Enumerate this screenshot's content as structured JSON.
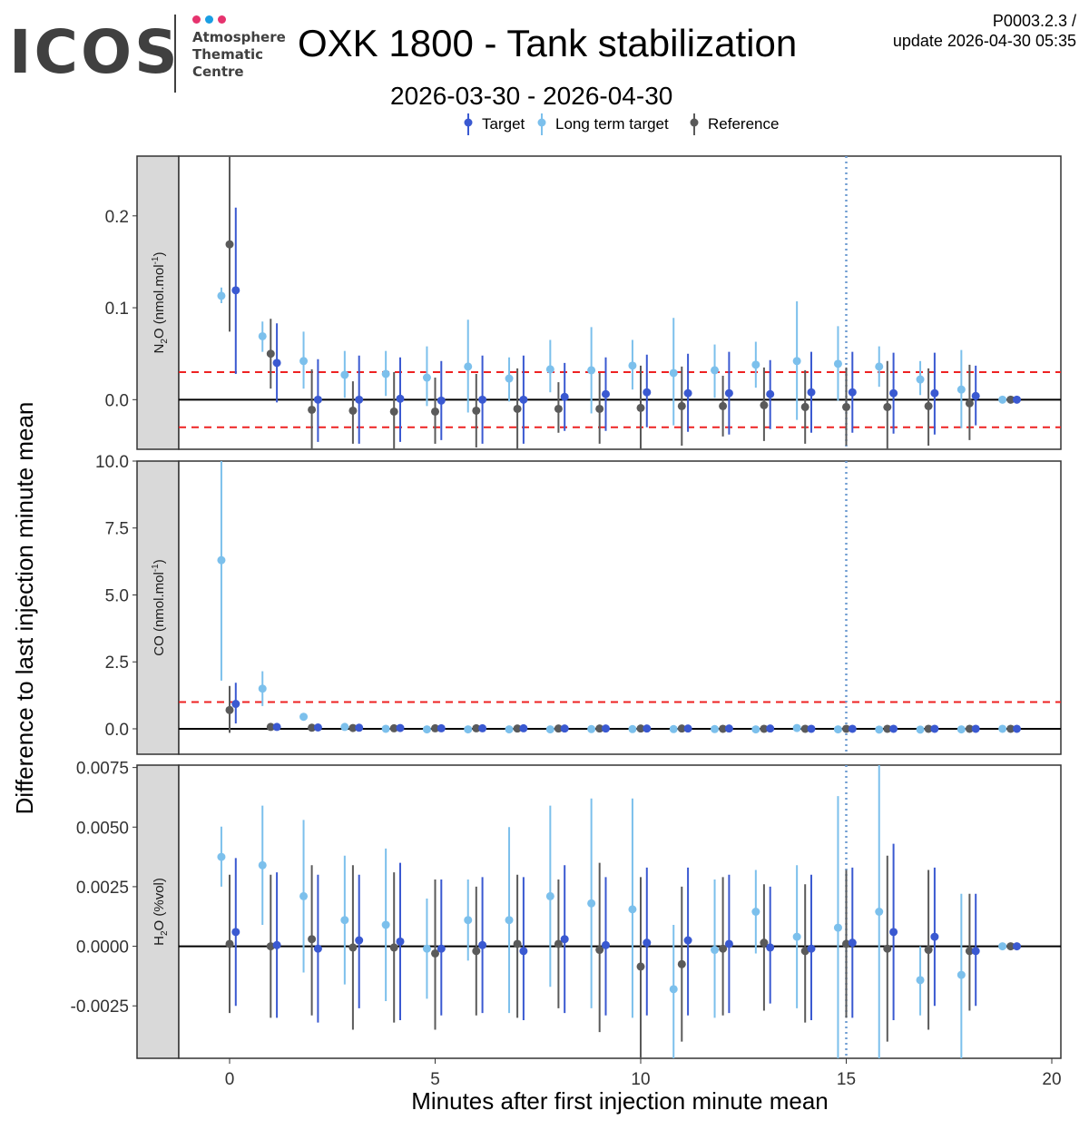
{
  "header": {
    "logo_text": "ICOS",
    "logo_subtitle_lines": [
      "Atmosphere",
      "Thematic",
      "Centre"
    ],
    "logo_dot_colors": [
      "#e6336e",
      "#1a9ee3",
      "#e6336e"
    ],
    "title": "OXK 1800 - Tank stabilization",
    "version_line1": "P0003.2.3 /",
    "version_line2": "update  2026-04-30 05:35",
    "subtitle": "2026-03-30 - 2026-04-30"
  },
  "chart_data": {
    "type": "scatter",
    "subtype": "faceted point-range",
    "xlabel": "Minutes after first injection minute mean",
    "ylabel": "Difference to last injection minute mean",
    "xlim": [
      -1.1,
      20.2
    ],
    "xticks": [
      0,
      5,
      10,
      15,
      20
    ],
    "xtick_labels": [
      "0",
      "5",
      "10",
      "15",
      "20"
    ],
    "vertical_reference_line": {
      "x": 15,
      "color": "#6d9bd1",
      "style": "dotted"
    },
    "legend": {
      "placement": "top-center",
      "entries": [
        {
          "name": "Target",
          "color": "#3a59d1"
        },
        {
          "name": "Long term target",
          "color": "#7cc0ec"
        },
        {
          "name": "Reference",
          "color": "#5a5a5a"
        }
      ]
    },
    "series_colors": {
      "Target": "#3a59d1",
      "Long term target": "#7cc0ec",
      "Reference": "#5a5a5a"
    },
    "series_x_offsets": {
      "Long term target": -0.2,
      "Reference": 0.0,
      "Target": 0.15
    },
    "minutes": [
      0,
      1,
      2,
      3,
      4,
      5,
      6,
      7,
      8,
      9,
      10,
      11,
      12,
      13,
      14,
      15,
      16,
      17,
      18,
      19
    ],
    "panels": [
      {
        "strip_label": "N2O (nmol.mol-1)",
        "strip_main": "N",
        "strip_sub": "2",
        "strip_rest": "O (nmol.mol",
        "strip_sup": "-1",
        "strip_end": ")",
        "ylim": [
          -0.054,
          0.265
        ],
        "yticks": [
          0.0,
          0.1,
          0.2
        ],
        "ytick_labels": [
          "0.0",
          "0.1",
          "0.2"
        ],
        "threshold_lines": [
          0.03,
          -0.03
        ],
        "series": [
          {
            "name": "Long term target",
            "values": [
              0.113,
              0.069,
              0.042,
              0.027,
              0.028,
              0.024,
              0.036,
              0.023,
              0.033,
              0.032,
              0.037,
              0.029,
              0.032,
              0.038,
              0.042,
              0.039,
              0.036,
              0.022,
              0.011,
              0.0
            ],
            "lower": [
              0.105,
              0.052,
              0.012,
              0.002,
              0.004,
              -0.007,
              -0.014,
              -0.002,
              0.008,
              -0.015,
              0.011,
              -0.028,
              0.002,
              0.013,
              -0.022,
              -0.001,
              0.014,
              0.005,
              -0.031,
              0.0
            ],
            "upper": [
              0.122,
              0.085,
              0.074,
              0.053,
              0.053,
              0.058,
              0.087,
              0.046,
              0.065,
              0.079,
              0.065,
              0.089,
              0.06,
              0.063,
              0.107,
              0.08,
              0.058,
              0.042,
              0.054,
              0.0
            ]
          },
          {
            "name": "Reference",
            "values": [
              0.169,
              0.05,
              -0.011,
              -0.012,
              -0.013,
              -0.013,
              -0.012,
              -0.01,
              -0.01,
              -0.01,
              -0.009,
              -0.007,
              -0.007,
              -0.006,
              -0.008,
              -0.008,
              -0.008,
              -0.007,
              -0.004,
              0.0
            ],
            "lower": [
              0.074,
              0.012,
              -0.055,
              -0.048,
              -0.055,
              -0.048,
              -0.052,
              -0.055,
              -0.036,
              -0.048,
              -0.055,
              -0.05,
              -0.04,
              -0.045,
              -0.048,
              -0.05,
              -0.055,
              -0.05,
              -0.044,
              0.0
            ],
            "upper": [
              0.265,
              0.088,
              0.033,
              0.02,
              0.03,
              0.024,
              0.028,
              0.034,
              0.019,
              0.029,
              0.037,
              0.036,
              0.026,
              0.035,
              0.032,
              0.035,
              0.042,
              0.034,
              0.038,
              0.0
            ]
          },
          {
            "name": "Target",
            "values": [
              0.119,
              0.04,
              0.0,
              0.0,
              0.001,
              -0.001,
              0.0,
              0.0,
              0.003,
              0.006,
              0.008,
              0.007,
              0.007,
              0.006,
              0.008,
              0.008,
              0.007,
              0.007,
              0.004,
              0.0
            ],
            "lower": [
              0.028,
              -0.003,
              -0.046,
              -0.048,
              -0.046,
              -0.044,
              -0.048,
              -0.048,
              -0.034,
              -0.034,
              -0.03,
              -0.035,
              -0.038,
              -0.032,
              -0.036,
              -0.036,
              -0.037,
              -0.038,
              -0.028,
              0.0
            ],
            "upper": [
              0.209,
              0.083,
              0.044,
              0.048,
              0.046,
              0.042,
              0.048,
              0.048,
              0.04,
              0.046,
              0.049,
              0.05,
              0.052,
              0.043,
              0.052,
              0.052,
              0.051,
              0.051,
              0.037,
              0.0
            ]
          }
        ]
      },
      {
        "strip_label": "CO (nmol.mol-1)",
        "strip_main": "CO (nmol.mol",
        "strip_sub": "",
        "strip_rest": "",
        "strip_sup": "-1",
        "strip_end": ")",
        "ylim": [
          -0.95,
          10.0
        ],
        "yticks": [
          0.0,
          2.5,
          5.0,
          7.5,
          10.0
        ],
        "ytick_labels": [
          "0.0",
          "2.5",
          "5.0",
          "7.5",
          "10.0"
        ],
        "threshold_lines": [
          1.0
        ],
        "series": [
          {
            "name": "Long term target",
            "values": [
              6.3,
              1.5,
              0.45,
              0.07,
              0.0,
              -0.02,
              -0.02,
              -0.02,
              -0.02,
              -0.01,
              -0.01,
              -0.01,
              -0.01,
              -0.02,
              0.03,
              -0.02,
              -0.03,
              -0.03,
              -0.02,
              0.0
            ],
            "lower": [
              1.8,
              0.85,
              0.35,
              -0.03,
              -0.08,
              -0.08,
              -0.08,
              -0.08,
              -0.08,
              -0.08,
              -0.08,
              -0.08,
              -0.08,
              -0.08,
              -0.04,
              -0.08,
              -0.08,
              -0.08,
              -0.08,
              0.0
            ],
            "upper": [
              10.0,
              2.15,
              0.55,
              0.15,
              0.08,
              0.06,
              0.05,
              0.05,
              0.05,
              0.05,
              0.05,
              0.05,
              0.05,
              0.05,
              0.1,
              0.05,
              0.05,
              0.05,
              0.05,
              0.0
            ]
          },
          {
            "name": "Reference",
            "values": [
              0.7,
              0.07,
              0.04,
              0.03,
              0.02,
              0.02,
              0.02,
              0.01,
              0.01,
              0.01,
              0.01,
              0.01,
              0.0,
              0.0,
              0.0,
              0.0,
              0.0,
              0.0,
              0.0,
              0.0
            ],
            "lower": [
              -0.15,
              0.0,
              -0.02,
              -0.03,
              -0.04,
              -0.04,
              -0.04,
              -0.04,
              -0.04,
              -0.04,
              -0.04,
              -0.04,
              -0.04,
              -0.04,
              -0.04,
              -0.04,
              -0.04,
              -0.04,
              -0.04,
              0.0
            ],
            "upper": [
              1.6,
              0.14,
              0.1,
              0.09,
              0.08,
              0.08,
              0.08,
              0.06,
              0.06,
              0.06,
              0.06,
              0.06,
              0.04,
              0.04,
              0.04,
              0.04,
              0.04,
              0.04,
              0.04,
              0.0
            ]
          },
          {
            "name": "Target",
            "values": [
              0.93,
              0.07,
              0.05,
              0.04,
              0.03,
              0.02,
              0.02,
              0.02,
              0.01,
              0.01,
              0.01,
              0.01,
              0.01,
              0.01,
              0.0,
              0.0,
              0.0,
              0.0,
              0.0,
              0.0
            ],
            "lower": [
              0.2,
              0.0,
              -0.02,
              -0.03,
              -0.03,
              -0.04,
              -0.04,
              -0.04,
              -0.04,
              -0.04,
              -0.04,
              -0.04,
              -0.04,
              -0.04,
              -0.04,
              -0.04,
              -0.04,
              -0.04,
              -0.04,
              0.0
            ],
            "upper": [
              1.72,
              0.14,
              0.12,
              0.11,
              0.09,
              0.08,
              0.08,
              0.08,
              0.06,
              0.06,
              0.06,
              0.06,
              0.06,
              0.06,
              0.04,
              0.04,
              0.04,
              0.04,
              0.04,
              0.0
            ]
          }
        ]
      },
      {
        "strip_label": "H2O (%vol)",
        "strip_main": "H",
        "strip_sub": "2",
        "strip_rest": "O (%vol)",
        "strip_sup": "",
        "strip_end": "",
        "ylim": [
          -0.0047,
          0.0076
        ],
        "yticks": [
          -0.0025,
          0.0,
          0.0025,
          0.005,
          0.0075
        ],
        "ytick_labels": [
          "-0.0025",
          "0.0000",
          "0.0025",
          "0.0050",
          "0.0075"
        ],
        "threshold_lines": [],
        "series": [
          {
            "name": "Long term target",
            "values": [
              0.00375,
              0.0034,
              0.0021,
              0.0011,
              0.0009,
              -0.0001,
              0.0011,
              0.0011,
              0.0021,
              0.0018,
              0.00155,
              -0.0018,
              -0.00015,
              0.00145,
              0.0004,
              0.00078,
              0.00145,
              -0.00142,
              -0.0012,
              0.0
            ],
            "lower": [
              0.0025,
              0.0009,
              -0.0011,
              -0.0016,
              -0.0023,
              -0.0022,
              -0.0006,
              -0.0028,
              -0.0017,
              -0.0026,
              -0.003,
              -0.0047,
              -0.003,
              -0.0003,
              -0.0026,
              -0.0047,
              -0.0047,
              -0.0029,
              -0.0047,
              0.0
            ],
            "upper": [
              0.00502,
              0.0059,
              0.0053,
              0.0038,
              0.0041,
              0.002,
              0.0028,
              0.005,
              0.0059,
              0.0062,
              0.0062,
              0.0009,
              0.0028,
              0.0032,
              0.0034,
              0.0063,
              0.0076,
              0.0,
              0.0022,
              0.0
            ]
          },
          {
            "name": "Reference",
            "values": [
              0.0001,
              0.0,
              0.0003,
              -5e-05,
              -5e-05,
              -0.0003,
              -0.0002,
              0.0001,
              0.0001,
              -0.00015,
              -0.00085,
              -0.00075,
              -0.0001,
              0.00015,
              -0.0002,
              0.0001,
              -0.0001,
              -0.00015,
              -0.0002,
              0.0
            ],
            "lower": [
              -0.0028,
              -0.003,
              -0.0029,
              -0.0035,
              -0.0032,
              -0.0035,
              -0.0029,
              -0.003,
              -0.0026,
              -0.0036,
              -0.0047,
              -0.004,
              -0.0029,
              -0.0027,
              -0.0032,
              -0.003,
              -0.004,
              -0.0035,
              -0.0027,
              0.0
            ],
            "upper": [
              0.003,
              0.003,
              0.0034,
              0.0034,
              0.0031,
              0.0028,
              0.0025,
              0.003,
              0.0028,
              0.0035,
              0.0029,
              0.0025,
              0.0029,
              0.0026,
              0.0026,
              0.0032,
              0.0038,
              0.0032,
              0.0022,
              0.0
            ]
          },
          {
            "name": "Target",
            "values": [
              0.0006,
              5e-05,
              -0.0001,
              0.00025,
              0.0002,
              -0.0001,
              5e-05,
              -0.0002,
              0.0003,
              5e-05,
              0.00015,
              0.00025,
              0.0001,
              -5e-05,
              -0.0001,
              0.00015,
              0.0006,
              0.0004,
              -0.0002,
              0.0
            ],
            "lower": [
              -0.0025,
              -0.003,
              -0.0032,
              -0.0026,
              -0.0031,
              -0.0029,
              -0.0028,
              -0.0031,
              -0.0028,
              -0.0029,
              -0.0029,
              -0.0029,
              -0.0028,
              -0.0024,
              -0.0031,
              -0.003,
              -0.0031,
              -0.0025,
              -0.0025,
              0.0
            ],
            "upper": [
              0.0037,
              0.0031,
              0.003,
              0.003,
              0.0035,
              0.0028,
              0.0029,
              0.0029,
              0.0034,
              0.0029,
              0.0033,
              0.0033,
              0.003,
              0.0025,
              0.003,
              0.0033,
              0.0043,
              0.0033,
              0.0022,
              0.0
            ]
          }
        ]
      }
    ]
  }
}
